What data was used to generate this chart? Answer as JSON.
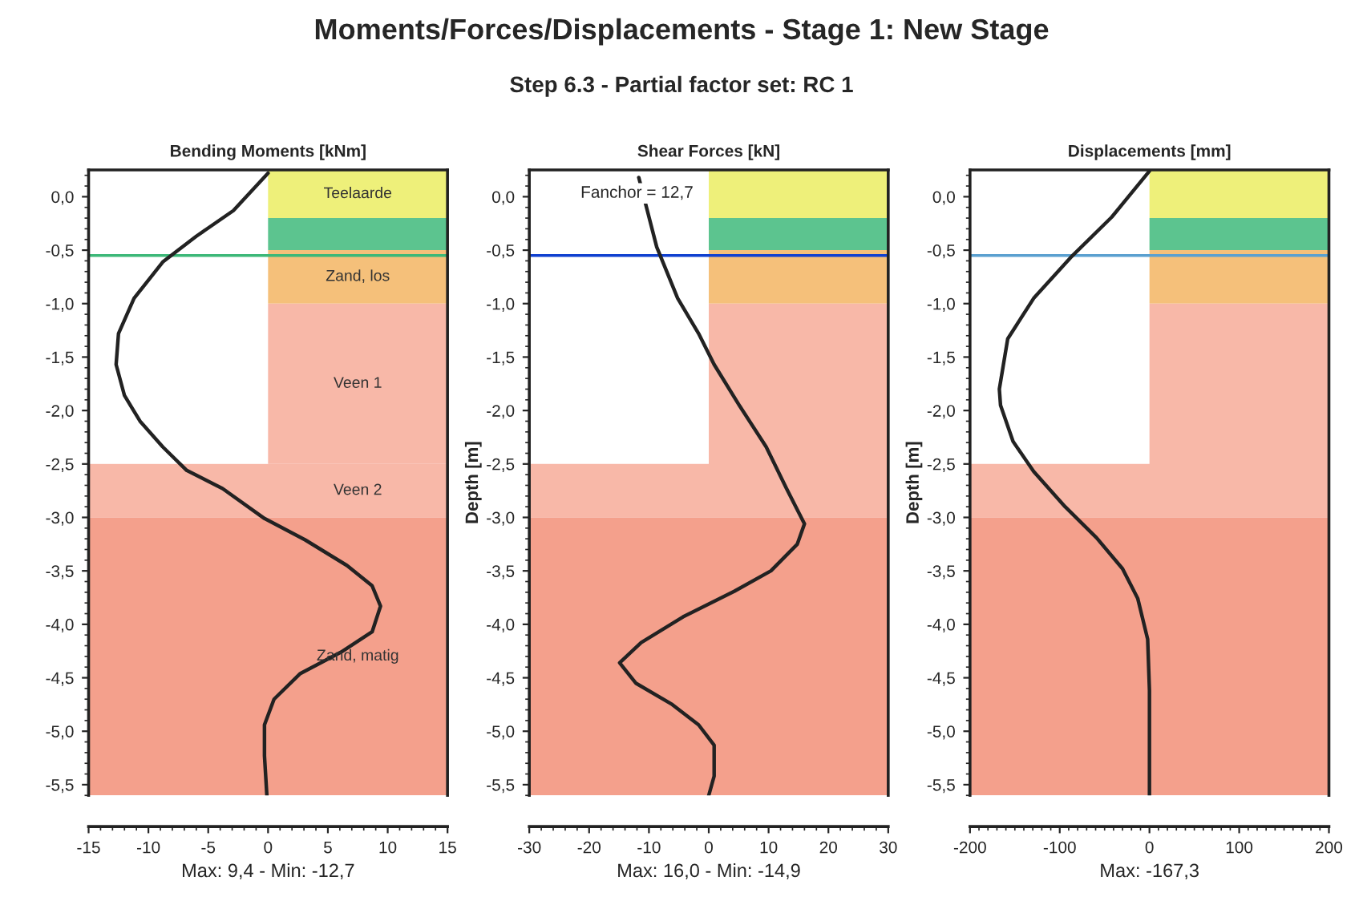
{
  "chart_data": [
    {
      "type": "line",
      "orientation": "horizontal",
      "title": "Bending Moments [kNm]",
      "xlabel": "Max: 9,4 - Min: -12,7",
      "annotations": [
        "Moments/Forces/Displacements - Stage 1: New Stage",
        "Step 6.3 - Partial factor set: RC 1"
      ],
      "series": [
        {
          "type": "area",
          "color": "#ffffff",
          "x": [
            0.25,
            -2.5
          ],
          "values": [
            -15,
            -15
          ]
        },
        {
          "color": "#222222",
          "x": [
            0.22,
            -0.13,
            -0.37,
            -0.61,
            -0.95,
            -1.28,
            -1.57,
            -1.86,
            -2.1,
            -2.34,
            -2.56,
            -2.73,
            -3.01,
            -3.21,
            -3.45,
            -3.64,
            -3.83,
            -4.07,
            -4.26,
            -4.46,
            -4.7,
            -4.94,
            -5.23,
            -5.6
          ],
          "values": [
            0,
            -2.9,
            -6.0,
            -8.8,
            -11.2,
            -12.5,
            -12.7,
            -12.0,
            -10.7,
            -8.8,
            -6.8,
            -3.8,
            -0.3,
            3.1,
            6.6,
            8.7,
            9.4,
            8.7,
            6.1,
            2.7,
            0.5,
            -0.3,
            -0.3,
            -0.1
          ]
        }
      ],
      "xlim": [
        -15,
        15
      ],
      "xticks": [
        -15,
        -10,
        -5,
        0,
        5,
        10,
        15
      ],
      "ylim": [
        -5.6,
        0.25
      ],
      "yticks": [
        {
          "value": 0,
          "label": "0,0"
        },
        {
          "value": -0.5,
          "label": "-0,5"
        },
        {
          "value": -1,
          "label": "-1,0"
        },
        {
          "value": -1.5,
          "label": "-1,5"
        },
        {
          "value": -2,
          "label": "-2,0"
        },
        {
          "value": -2.5,
          "label": "-2,5"
        },
        {
          "value": -3,
          "label": "-3,0"
        },
        {
          "value": -3.5,
          "label": "-3,5"
        },
        {
          "value": -4,
          "label": "-4,0"
        },
        {
          "value": -4.5,
          "label": "-4,5"
        },
        {
          "value": -5,
          "label": "-5,0"
        },
        {
          "value": -5.5,
          "label": "-5,5"
        }
      ],
      "grid": false,
      "legend": false,
      "marker": "none",
      "line_style": "solid",
      "ref_lines": [
        {
          "axis": "y",
          "value": -0.55,
          "color": "#3cb878"
        }
      ],
      "bands": [
        {
          "axis": "y",
          "from": 0.25,
          "to": -0.2,
          "color": "#eef07a",
          "label": "Teelaarde"
        },
        {
          "axis": "y",
          "from": -0.2,
          "to": -0.5,
          "color": "#5cc48f"
        },
        {
          "axis": "y",
          "from": -0.5,
          "to": -1.0,
          "color": "#f5c07a",
          "label": "Zand, los"
        },
        {
          "axis": "y",
          "from": -1.0,
          "to": -2.5,
          "color": "#f8b8a8",
          "label": "Veen 1"
        },
        {
          "axis": "y",
          "from": -2.5,
          "to": -3.0,
          "color": "#f8b8a8",
          "label": "Veen 2"
        },
        {
          "axis": "y",
          "from": -3.0,
          "to": -5.6,
          "color": "#f4a08c",
          "label": "Zand, matig"
        }
      ]
    },
    {
      "type": "line",
      "orientation": "horizontal",
      "title": "Shear Forces [kN]",
      "xlabel": "Max: 16,0 - Min: -14,9",
      "ylabel": "Depth [m]",
      "annotations": [
        "Fanchor = 12,7"
      ],
      "series": [
        {
          "type": "area",
          "color": "#ffffff",
          "x": [
            0.25,
            -2.5
          ],
          "values": [
            -30,
            -30
          ]
        },
        {
          "color": "#222222",
          "x": [
            0.18,
            -0.47,
            -0.95,
            -1.28,
            -1.57,
            -1.96,
            -2.34,
            -2.73,
            -3.06,
            -3.25,
            -3.5,
            -3.69,
            -3.93,
            -4.17,
            -4.36,
            -4.55,
            -4.75,
            -4.94,
            -5.13,
            -5.42,
            -5.6
          ],
          "values": [
            -11.7,
            -8.7,
            -5.2,
            -1.7,
            0.9,
            5.2,
            9.6,
            13.0,
            16.0,
            14.8,
            10.4,
            4.3,
            -4.3,
            -11.3,
            -14.9,
            -12.2,
            -6.1,
            -1.7,
            0.9,
            0.9,
            0
          ]
        }
      ],
      "xlim": [
        -30,
        30
      ],
      "xticks": [
        -30,
        -20,
        -10,
        0,
        10,
        20,
        30
      ],
      "ylim": [
        -5.6,
        0.25
      ],
      "yticks": [
        {
          "value": 0,
          "label": "0,0"
        },
        {
          "value": -0.5,
          "label": "-0,5"
        },
        {
          "value": -1,
          "label": "-1,0"
        },
        {
          "value": -1.5,
          "label": "-1,5"
        },
        {
          "value": -2,
          "label": "-2,0"
        },
        {
          "value": -2.5,
          "label": "-2,5"
        },
        {
          "value": -3,
          "label": "-3,0"
        },
        {
          "value": -3.5,
          "label": "-3,5"
        },
        {
          "value": -4,
          "label": "-4,0"
        },
        {
          "value": -4.5,
          "label": "-4,5"
        },
        {
          "value": -5,
          "label": "-5,0"
        },
        {
          "value": -5.5,
          "label": "-5,5"
        }
      ],
      "grid": false,
      "legend": false,
      "marker": "none",
      "line_style": "solid",
      "ref_lines": [
        {
          "axis": "y",
          "value": -0.55,
          "color": "#1040d0"
        }
      ],
      "bands": [
        {
          "axis": "y",
          "from": 0.25,
          "to": -0.2,
          "color": "#eef07a"
        },
        {
          "axis": "y",
          "from": -0.2,
          "to": -0.5,
          "color": "#5cc48f"
        },
        {
          "axis": "y",
          "from": -0.5,
          "to": -1.0,
          "color": "#f5c07a"
        },
        {
          "axis": "y",
          "from": -1.0,
          "to": -3.0,
          "color": "#f8b8a8"
        },
        {
          "axis": "y",
          "from": -3.0,
          "to": -5.6,
          "color": "#f4a08c"
        }
      ]
    },
    {
      "type": "line",
      "orientation": "horizontal",
      "title": "Displacements [mm]",
      "xlabel": "Max: -167,3",
      "ylabel": "Depth [m]",
      "series": [
        {
          "type": "area",
          "color": "#ffffff",
          "x": [
            0.25,
            -2.5
          ],
          "values": [
            -200,
            -200
          ]
        },
        {
          "color": "#222222",
          "x": [
            0.24,
            -0.19,
            -0.57,
            -0.95,
            -1.33,
            -1.8,
            -1.95,
            -2.29,
            -2.57,
            -2.9,
            -3.19,
            -3.48,
            -3.76,
            -4.14,
            -4.62,
            -5.6
          ],
          "values": [
            0,
            -42,
            -88,
            -129,
            -158,
            -167.3,
            -166,
            -152,
            -129,
            -94,
            -59,
            -30,
            -13,
            -2,
            0,
            0
          ]
        }
      ],
      "xlim": [
        -200,
        200
      ],
      "xticks": [
        -200,
        -100,
        0,
        100,
        200
      ],
      "ylim": [
        -5.6,
        0.25
      ],
      "yticks": [
        {
          "value": 0,
          "label": "0,0"
        },
        {
          "value": -0.5,
          "label": "-0,5"
        },
        {
          "value": -1,
          "label": "-1,0"
        },
        {
          "value": -1.5,
          "label": "-1,5"
        },
        {
          "value": -2,
          "label": "-2,0"
        },
        {
          "value": -2.5,
          "label": "-2,5"
        },
        {
          "value": -3,
          "label": "-3,0"
        },
        {
          "value": -3.5,
          "label": "-3,5"
        },
        {
          "value": -4,
          "label": "-4,0"
        },
        {
          "value": -4.5,
          "label": "-4,5"
        },
        {
          "value": -5,
          "label": "-5,0"
        },
        {
          "value": -5.5,
          "label": "-5,5"
        }
      ],
      "grid": false,
      "legend": false,
      "marker": "none",
      "line_style": "solid",
      "ref_lines": [
        {
          "axis": "y",
          "value": -0.55,
          "color": "#5aa0d0"
        }
      ],
      "bands": [
        {
          "axis": "y",
          "from": 0.25,
          "to": -0.2,
          "color": "#eef07a"
        },
        {
          "axis": "y",
          "from": -0.2,
          "to": -0.5,
          "color": "#5cc48f"
        },
        {
          "axis": "y",
          "from": -0.5,
          "to": -1.0,
          "color": "#f5c07a"
        },
        {
          "axis": "y",
          "from": -1.0,
          "to": -3.0,
          "color": "#f8b8a8"
        },
        {
          "axis": "y",
          "from": -3.0,
          "to": -5.6,
          "color": "#f4a08c"
        }
      ]
    }
  ]
}
